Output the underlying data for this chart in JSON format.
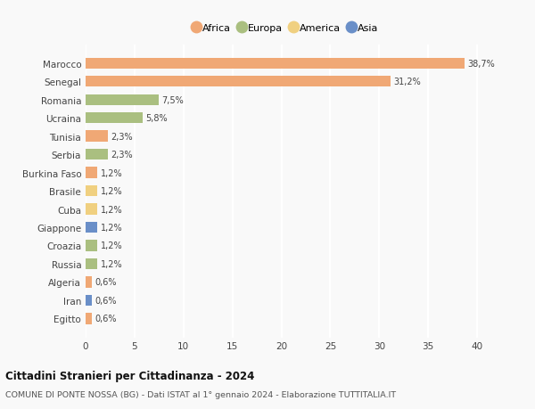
{
  "countries": [
    "Marocco",
    "Senegal",
    "Romania",
    "Ucraina",
    "Tunisia",
    "Serbia",
    "Burkina Faso",
    "Brasile",
    "Cuba",
    "Giappone",
    "Croazia",
    "Russia",
    "Algeria",
    "Iran",
    "Egitto"
  ],
  "values": [
    38.7,
    31.2,
    7.5,
    5.8,
    2.3,
    2.3,
    1.2,
    1.2,
    1.2,
    1.2,
    1.2,
    1.2,
    0.6,
    0.6,
    0.6
  ],
  "labels": [
    "38,7%",
    "31,2%",
    "7,5%",
    "5,8%",
    "2,3%",
    "2,3%",
    "1,2%",
    "1,2%",
    "1,2%",
    "1,2%",
    "1,2%",
    "1,2%",
    "0,6%",
    "0,6%",
    "0,6%"
  ],
  "continents": [
    "Africa",
    "Africa",
    "Europa",
    "Europa",
    "Africa",
    "Europa",
    "Africa",
    "America",
    "America",
    "Asia",
    "Europa",
    "Europa",
    "Africa",
    "Asia",
    "Africa"
  ],
  "colors": {
    "Africa": "#F0A875",
    "Europa": "#AABF80",
    "America": "#F0D080",
    "Asia": "#6A8FC8"
  },
  "legend_order": [
    "Africa",
    "Europa",
    "America",
    "Asia"
  ],
  "title": "Cittadini Stranieri per Cittadinanza - 2024",
  "subtitle": "COMUNE DI PONTE NOSSA (BG) - Dati ISTAT al 1° gennaio 2024 - Elaborazione TUTTITALIA.IT",
  "xlim": [
    0,
    41
  ],
  "xticks": [
    0,
    5,
    10,
    15,
    20,
    25,
    30,
    35,
    40
  ],
  "background_color": "#f9f9f9",
  "grid_color": "#ffffff",
  "bar_height": 0.6
}
